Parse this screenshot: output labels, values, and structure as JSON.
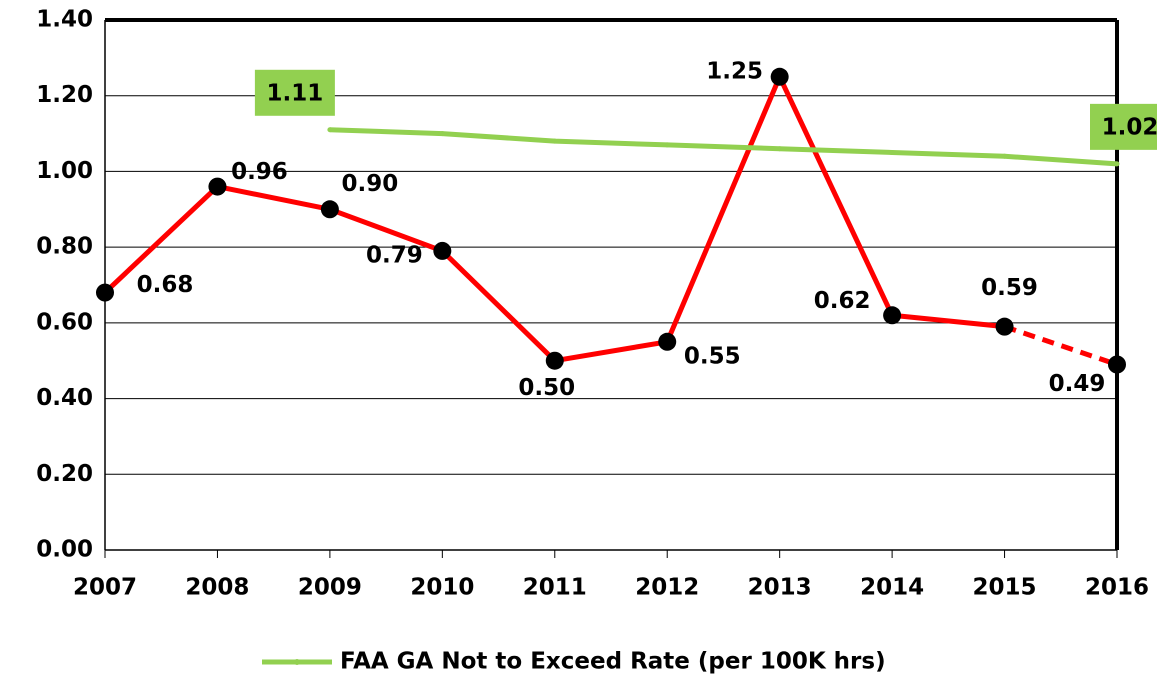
{
  "chart_data": {
    "type": "line",
    "categories": [
      "2007",
      "2008",
      "2009",
      "2010",
      "2011",
      "2012",
      "2013",
      "2014",
      "2015",
      "2016"
    ],
    "series": [
      {
        "color": "#ff0000",
        "marker_color": "#000000",
        "last_segment_dashed": true,
        "values": [
          0.68,
          0.96,
          0.9,
          0.79,
          0.5,
          0.55,
          1.25,
          0.62,
          0.59,
          0.49
        ],
        "value_labels": [
          "0.68",
          "0.96",
          "0.90",
          "0.79",
          "0.50",
          "0.55",
          "1.25",
          "0.62",
          "0.59",
          "0.49"
        ]
      },
      {
        "name": "FAA GA Not to Exceed Rate (per 100K hrs)",
        "color": "#92d050",
        "values": [
          null,
          null,
          1.11,
          1.1,
          1.08,
          1.07,
          1.06,
          1.05,
          1.04,
          1.02
        ],
        "value_labels": [
          null,
          null,
          "1.11",
          null,
          null,
          null,
          null,
          null,
          null,
          "1.02"
        ]
      }
    ],
    "ylim": [
      0,
      1.4
    ],
    "yticks": [
      {
        "value": 0,
        "label": "0.00"
      },
      {
        "value": 0.2,
        "label": "0.20"
      },
      {
        "value": 0.4,
        "label": "0.40"
      },
      {
        "value": 0.6,
        "label": "0.60"
      },
      {
        "value": 0.8,
        "label": "0.80"
      },
      {
        "value": 1,
        "label": "1.00"
      },
      {
        "value": 1.2,
        "label": "1.20"
      },
      {
        "value": 1.4,
        "label": "1.40"
      }
    ],
    "grid": true,
    "legend": "bottom"
  }
}
